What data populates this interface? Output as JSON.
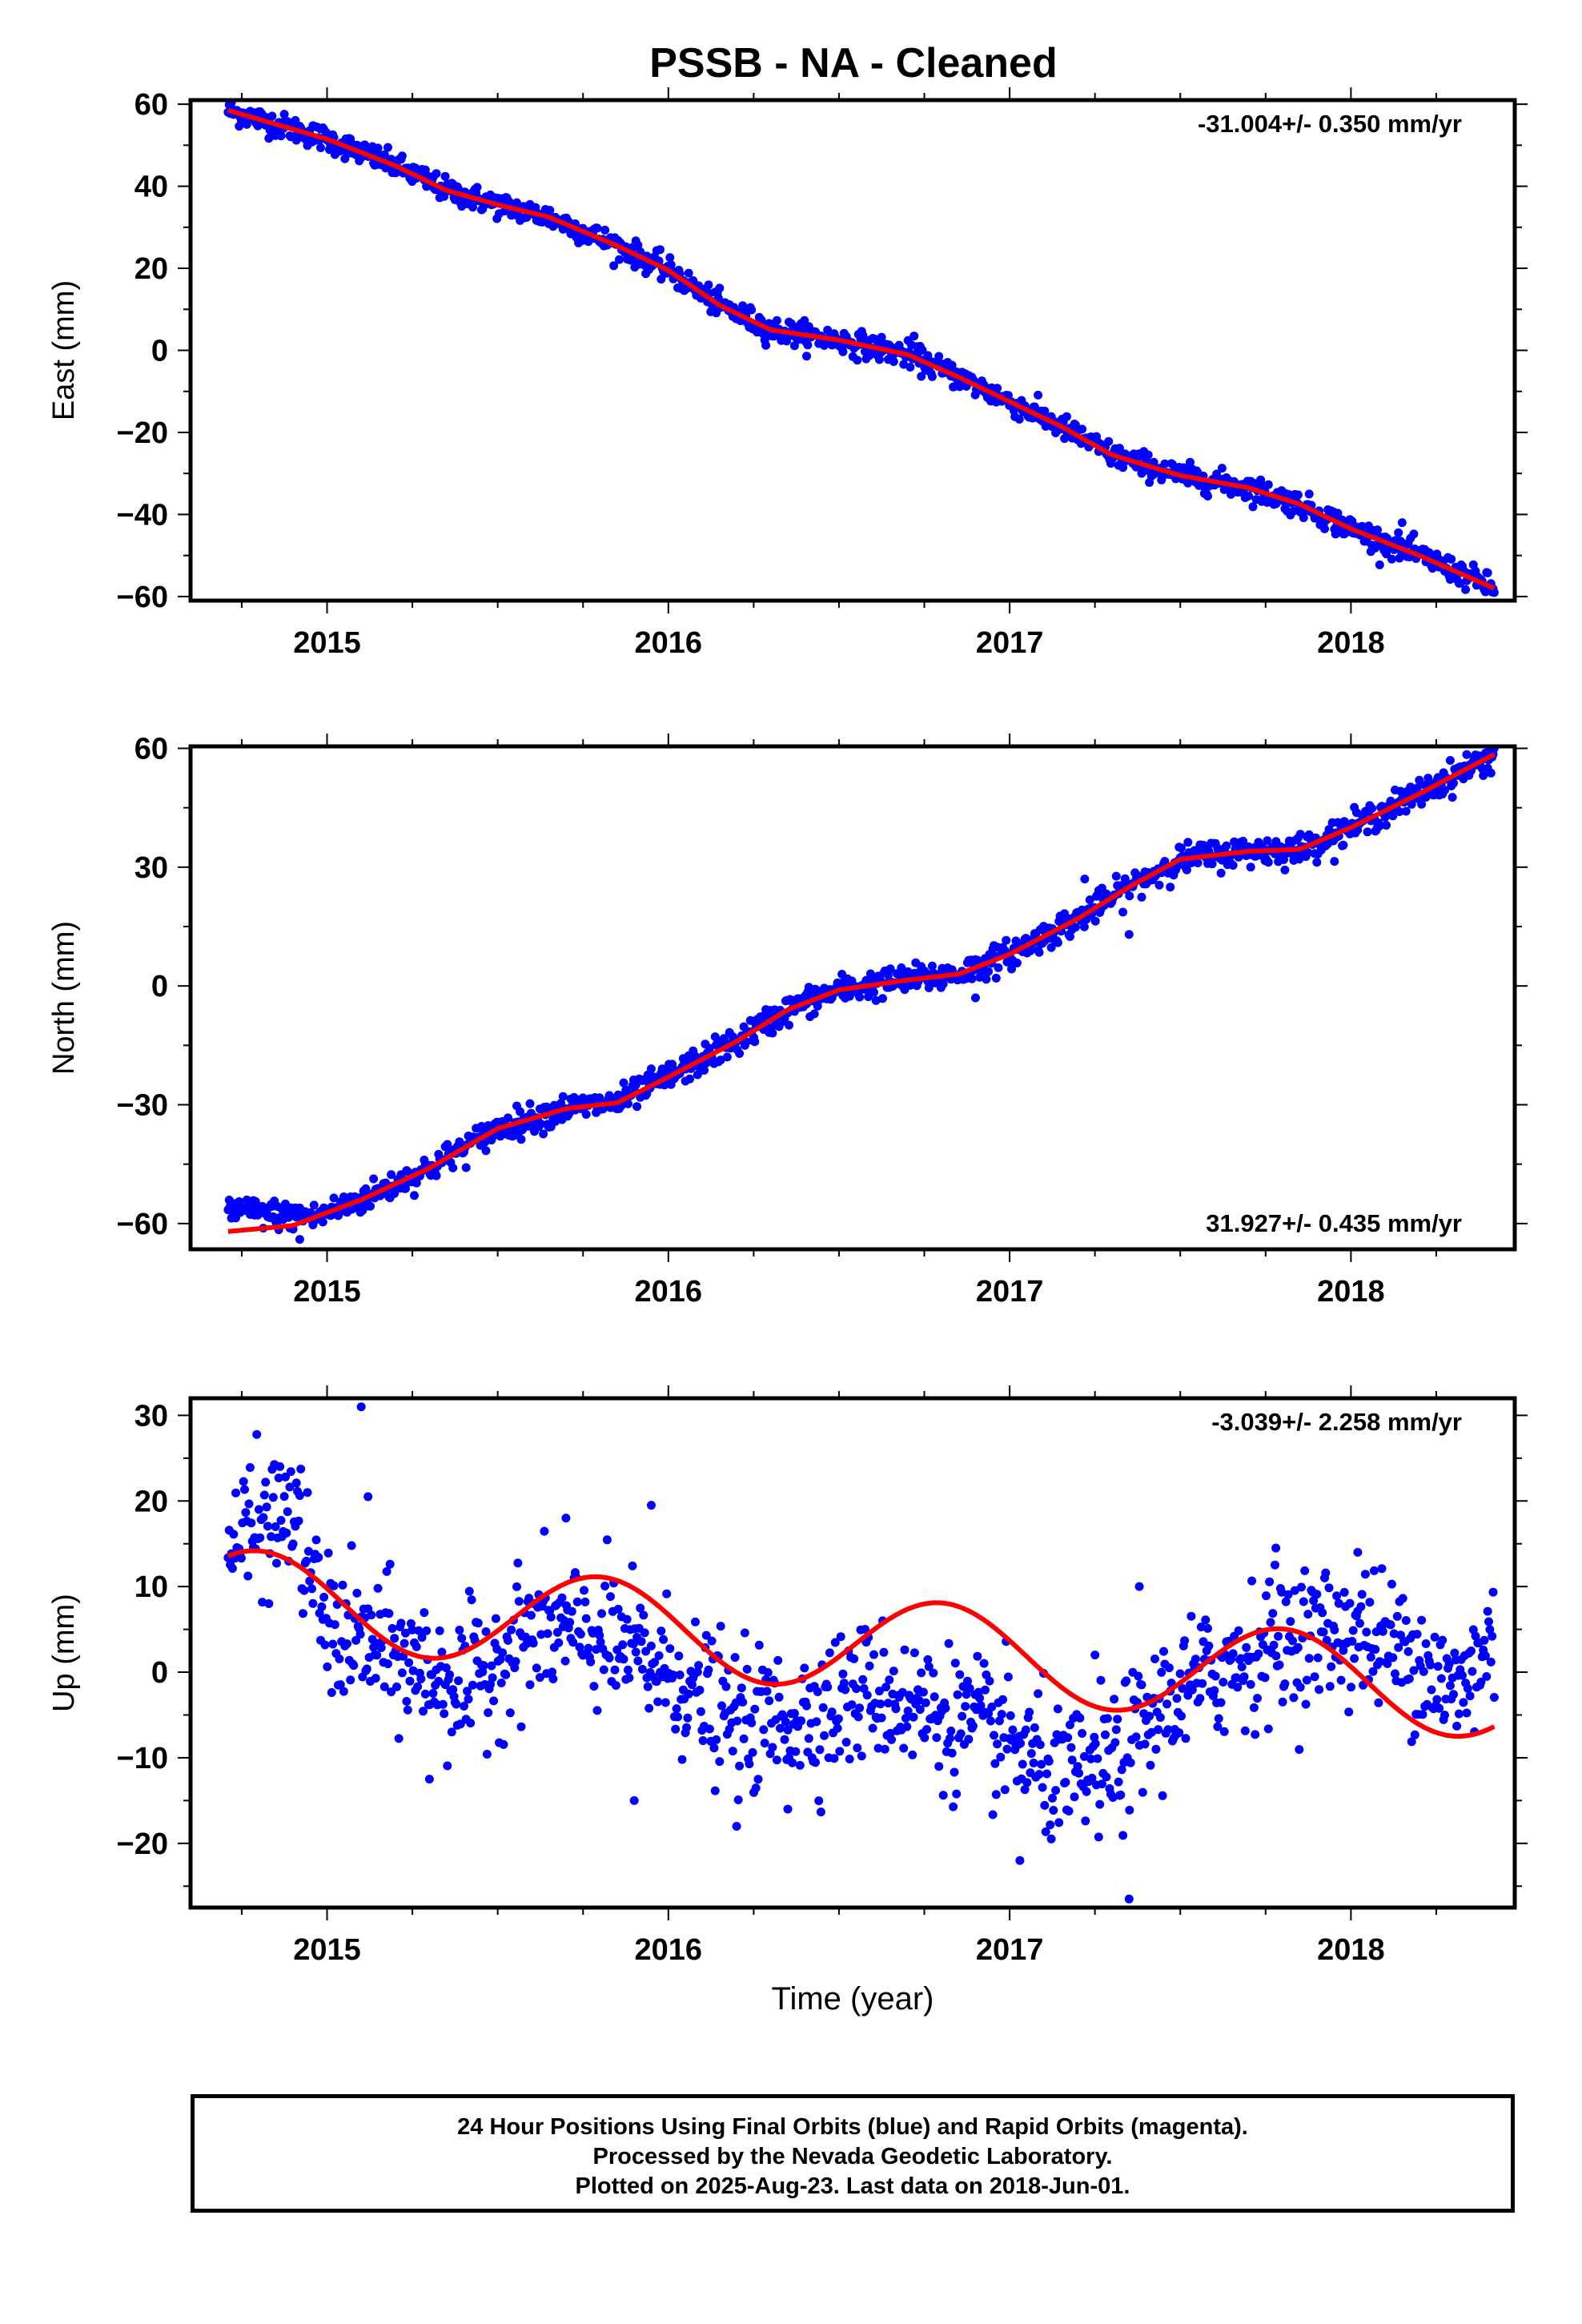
{
  "title": "PSSB  - NA - Cleaned",
  "footer": {
    "lines": [
      "24 Hour Positions Using Final Orbits (blue) and Rapid Orbits (magenta).",
      "Processed by the Nevada Geodetic Laboratory.",
      "Plotted on 2025-Aug-23. Last data on 2018-Jun-01."
    ]
  },
  "colors": {
    "points": "#0000ff",
    "fit": "#ff0000",
    "frame": "#000000"
  },
  "chart_data": [
    {
      "type": "scatter",
      "component": "east",
      "title": "PSSB  - NA - Cleaned",
      "ylabel": "East (mm)",
      "xlabel": "",
      "xlim": [
        2014.6,
        2018.48
      ],
      "ylim": [
        -61,
        61
      ],
      "xticks": [
        2015,
        2016,
        2017,
        2018
      ],
      "xtick_labels": [
        "2015",
        "2016",
        "2017",
        "2018"
      ],
      "yticks": [
        -60,
        -40,
        -20,
        0,
        20,
        40,
        60
      ],
      "ytick_labels": [
        "−60",
        "−40",
        "−20",
        "0",
        "20",
        "40",
        "60"
      ],
      "rate_label": "-31.004+/- 0.350 mm/yr",
      "rate_position": "top-right",
      "start_year": 2014.71,
      "end_year": 2018.42,
      "trend_points": [
        [
          2014.71,
          58.5
        ],
        [
          2015.0,
          51.5
        ],
        [
          2015.2,
          45.0
        ],
        [
          2015.35,
          39.0
        ],
        [
          2015.5,
          35.5
        ],
        [
          2015.65,
          32.5
        ],
        [
          2015.85,
          25.5
        ],
        [
          2016.0,
          19.5
        ],
        [
          2016.15,
          11.0
        ],
        [
          2016.3,
          5.0
        ],
        [
          2016.5,
          2.5
        ],
        [
          2016.7,
          -1.0
        ],
        [
          2016.85,
          -6.5
        ],
        [
          2017.0,
          -12.5
        ],
        [
          2017.15,
          -18.5
        ],
        [
          2017.3,
          -25.5
        ],
        [
          2017.5,
          -30.5
        ],
        [
          2017.7,
          -33.5
        ],
        [
          2017.85,
          -37.5
        ],
        [
          2018.0,
          -43.5
        ],
        [
          2018.2,
          -50.0
        ],
        [
          2018.42,
          -58.0
        ]
      ],
      "noise_mm": 1.5,
      "outliers": [
        [
          2014.98,
          54.0
        ],
        [
          2015.1,
          47.0
        ],
        [
          2016.72,
          3.5
        ],
        [
          2018.15,
          -42.0
        ]
      ]
    },
    {
      "type": "scatter",
      "component": "north",
      "ylabel": "North (mm)",
      "xlabel": "",
      "xlim": [
        2014.6,
        2018.48
      ],
      "ylim": [
        -66.5,
        60.5
      ],
      "xticks": [
        2015,
        2016,
        2017,
        2018
      ],
      "xtick_labels": [
        "2015",
        "2016",
        "2017",
        "2018"
      ],
      "yticks": [
        -60,
        -30,
        0,
        30,
        60
      ],
      "ytick_labels": [
        "−60",
        "−30",
        "0",
        "30",
        "60"
      ],
      "rate_label": "31.927+/- 0.435 mm/yr",
      "rate_position": "bottom-right",
      "start_year": 2014.71,
      "end_year": 2018.42,
      "trend_points": [
        [
          2014.71,
          -62.0
        ],
        [
          2014.9,
          -60.5
        ],
        [
          2015.1,
          -54.0
        ],
        [
          2015.3,
          -46.0
        ],
        [
          2015.5,
          -36.0
        ],
        [
          2015.7,
          -31.0
        ],
        [
          2015.85,
          -29.5
        ],
        [
          2016.0,
          -23.0
        ],
        [
          2016.2,
          -14.0
        ],
        [
          2016.35,
          -6.0
        ],
        [
          2016.5,
          -1.0
        ],
        [
          2016.7,
          1.5
        ],
        [
          2016.85,
          3.0
        ],
        [
          2017.0,
          8.0
        ],
        [
          2017.2,
          17.0
        ],
        [
          2017.35,
          25.0
        ],
        [
          2017.5,
          32.0
        ],
        [
          2017.7,
          34.0
        ],
        [
          2017.85,
          34.5
        ],
        [
          2018.0,
          40.0
        ],
        [
          2018.2,
          48.5
        ],
        [
          2018.42,
          58.5
        ]
      ],
      "noise_mm": 1.8,
      "early_offset": {
        "until": 2014.95,
        "value": 4.0
      },
      "outliers": [
        [
          2016.05,
          -21.0
        ],
        [
          2017.22,
          27.0
        ],
        [
          2017.35,
          13.0
        ],
        [
          2016.9,
          -3.0
        ],
        [
          2014.92,
          -64.0
        ]
      ]
    },
    {
      "type": "scatter",
      "component": "up",
      "ylabel": "Up (mm)",
      "xlabel": "Time (year)",
      "xlim": [
        2014.6,
        2018.48
      ],
      "ylim": [
        -27.5,
        32.0
      ],
      "xticks": [
        2015,
        2016,
        2017,
        2018
      ],
      "xtick_labels": [
        "2015",
        "2016",
        "2017",
        "2018"
      ],
      "yticks": [
        -20,
        -10,
        0,
        10,
        20,
        30
      ],
      "ytick_labels": [
        "−20",
        "−10",
        "0",
        "10",
        "20",
        "30"
      ],
      "rate_label": "-3.039+/- 2.258 mm/yr",
      "rate_position": "top-right",
      "start_year": 2014.71,
      "end_year": 2018.42,
      "fit_model": {
        "intercept": 3.5,
        "rate": -3.039,
        "ref_year": 2016.5,
        "amplitude": 5.5,
        "phase_peak_year": 2014.8
      },
      "point_trend": [
        [
          2014.71,
          15.0
        ],
        [
          2014.9,
          19.0
        ],
        [
          2015.0,
          5.0
        ],
        [
          2015.2,
          2.0
        ],
        [
          2015.4,
          -2.0
        ],
        [
          2015.6,
          5.0
        ],
        [
          2015.8,
          4.0
        ],
        [
          2016.0,
          0.0
        ],
        [
          2016.2,
          -6.0
        ],
        [
          2016.4,
          -5.0
        ],
        [
          2016.6,
          -2.0
        ],
        [
          2016.8,
          -5.0
        ],
        [
          2017.0,
          -8.0
        ],
        [
          2017.15,
          -13.0
        ],
        [
          2017.3,
          -11.0
        ],
        [
          2017.45,
          -4.0
        ],
        [
          2017.6,
          0.0
        ],
        [
          2017.8,
          4.0
        ],
        [
          2018.0,
          5.0
        ],
        [
          2018.2,
          2.0
        ],
        [
          2018.3,
          -3.0
        ],
        [
          2018.42,
          4.0
        ]
      ],
      "noise_mm": 4.0,
      "outliers": [
        [
          2015.1,
          31.0
        ],
        [
          2015.95,
          19.5
        ],
        [
          2015.7,
          18.0
        ],
        [
          2015.12,
          20.5
        ],
        [
          2017.35,
          -26.5
        ],
        [
          2017.03,
          -22.0
        ],
        [
          2017.38,
          10.0
        ],
        [
          2015.9,
          -15.0
        ],
        [
          2016.2,
          -18.0
        ],
        [
          2017.78,
          14.5
        ],
        [
          2018.02,
          14.0
        ],
        [
          2016.35,
          -16.0
        ],
        [
          2015.3,
          -12.5
        ],
        [
          2017.25,
          2.0
        ]
      ]
    }
  ]
}
